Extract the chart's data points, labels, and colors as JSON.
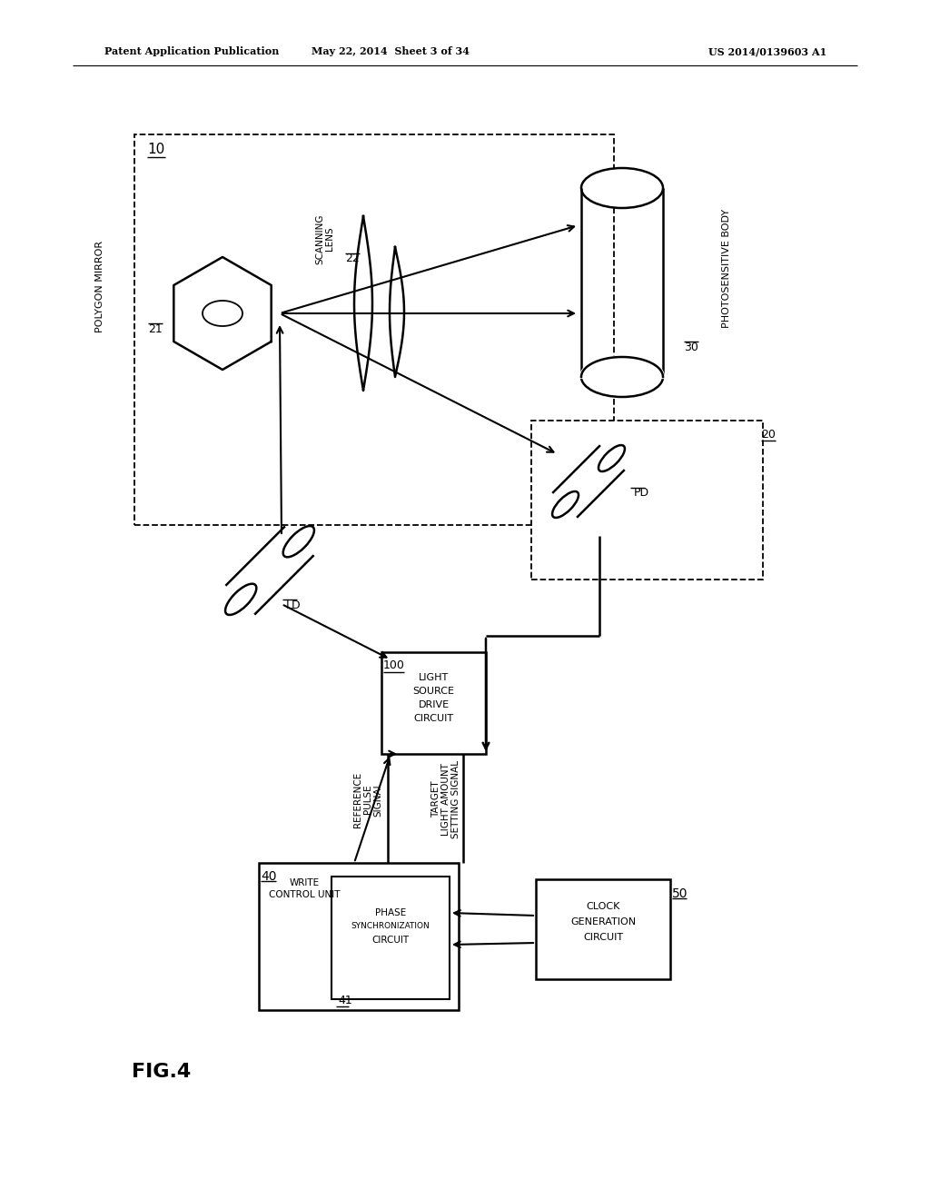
{
  "bg_color": "#ffffff",
  "line_color": "#000000",
  "header_left": "Patent Application Publication",
  "header_mid": "May 22, 2014  Sheet 3 of 34",
  "header_right": "US 2014/0139603 A1",
  "fig_label": "FIG.4"
}
